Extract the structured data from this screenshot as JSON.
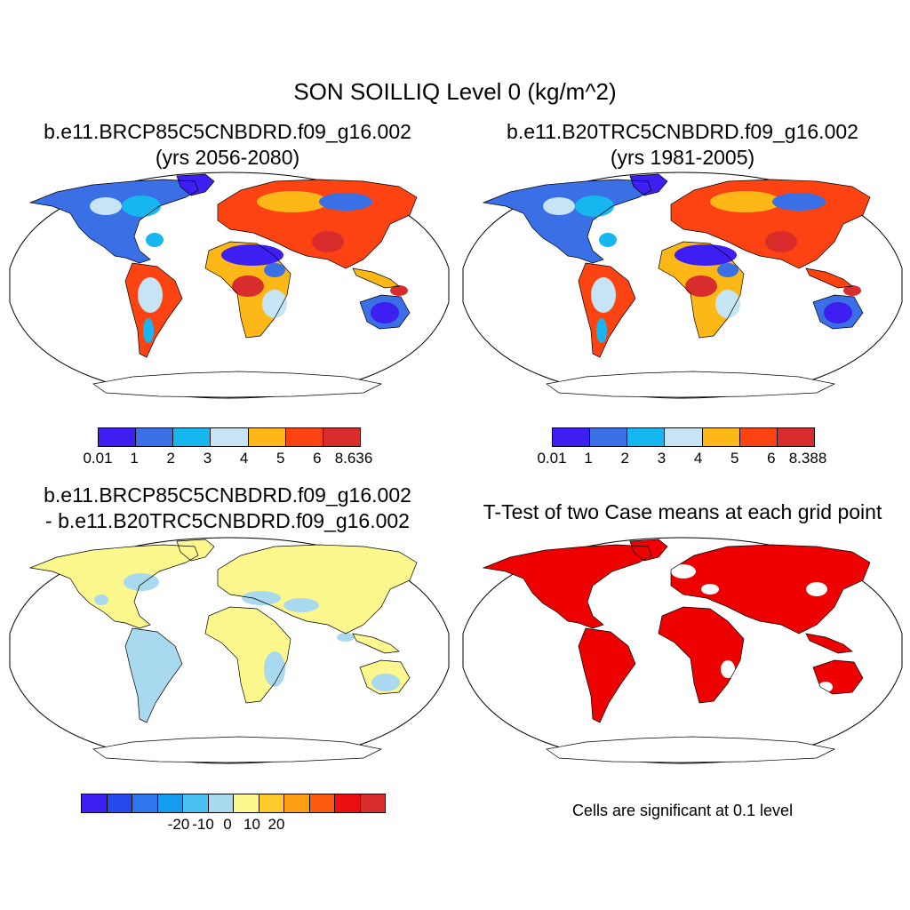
{
  "figure": {
    "title": "SON SOILLIQ Level 0 (kg/m^2)",
    "significance_note": "Cells are significant at 0.1 level"
  },
  "chart_data": [
    {
      "type": "heatmap",
      "projection": "Robinson",
      "title_line1": "b.e11.BRCP85C5CNBDRD.f09_g16.002",
      "title_line2": "(yrs 2056-2080)",
      "variable": "SOILLIQ",
      "units": "kg/m^2",
      "colorbar": {
        "colors": [
          "#3d1ff2",
          "#3a6fe6",
          "#16b6ee",
          "#c6e4f4",
          "#fdb817",
          "#fd4311",
          "#d92c2c"
        ],
        "tick_labels": [
          "0.01",
          "1",
          "2",
          "3",
          "4",
          "5",
          "6",
          "8.636"
        ],
        "vmin": 0.01,
        "vmax": 8.636
      }
    },
    {
      "type": "heatmap",
      "projection": "Robinson",
      "title_line1": "b.e11.B20TRC5CNBDRD.f09_g16.002",
      "title_line2": "(yrs 1981-2005)",
      "variable": "SOILLIQ",
      "units": "kg/m^2",
      "colorbar": {
        "colors": [
          "#3d1ff2",
          "#3a6fe6",
          "#16b6ee",
          "#c6e4f4",
          "#fdb817",
          "#fd4311",
          "#d92c2c"
        ],
        "tick_labels": [
          "0.01",
          "1",
          "2",
          "3",
          "4",
          "5",
          "6",
          "8.388"
        ],
        "vmin": 0.01,
        "vmax": 8.388
      }
    },
    {
      "type": "heatmap",
      "projection": "Robinson",
      "title_line1": "b.e11.BRCP85C5CNBDRD.f09_g16.002",
      "title_line2": "- b.e11.B20TRC5CNBDRD.f09_g16.002",
      "variable": "SOILLIQ difference",
      "units": "kg/m^2",
      "colorbar": {
        "colors": [
          "#3d1ff2",
          "#2649ee",
          "#2f76ec",
          "#149cef",
          "#4bc0f2",
          "#a9d9ee",
          "#fdf88d",
          "#fecb2c",
          "#fd9d13",
          "#fd5a11",
          "#ed0f0f",
          "#d92c2c"
        ],
        "tick_labels": [
          "-20",
          "-10",
          "0",
          "10",
          "20"
        ],
        "tick_values": [
          -20,
          -10,
          0,
          10,
          20
        ]
      }
    },
    {
      "type": "heatmap",
      "projection": "Robinson",
      "title_line1": "T-Test of two Case means at each grid point",
      "significance_level": 0.1,
      "fill_color": "#ee0000"
    }
  ]
}
